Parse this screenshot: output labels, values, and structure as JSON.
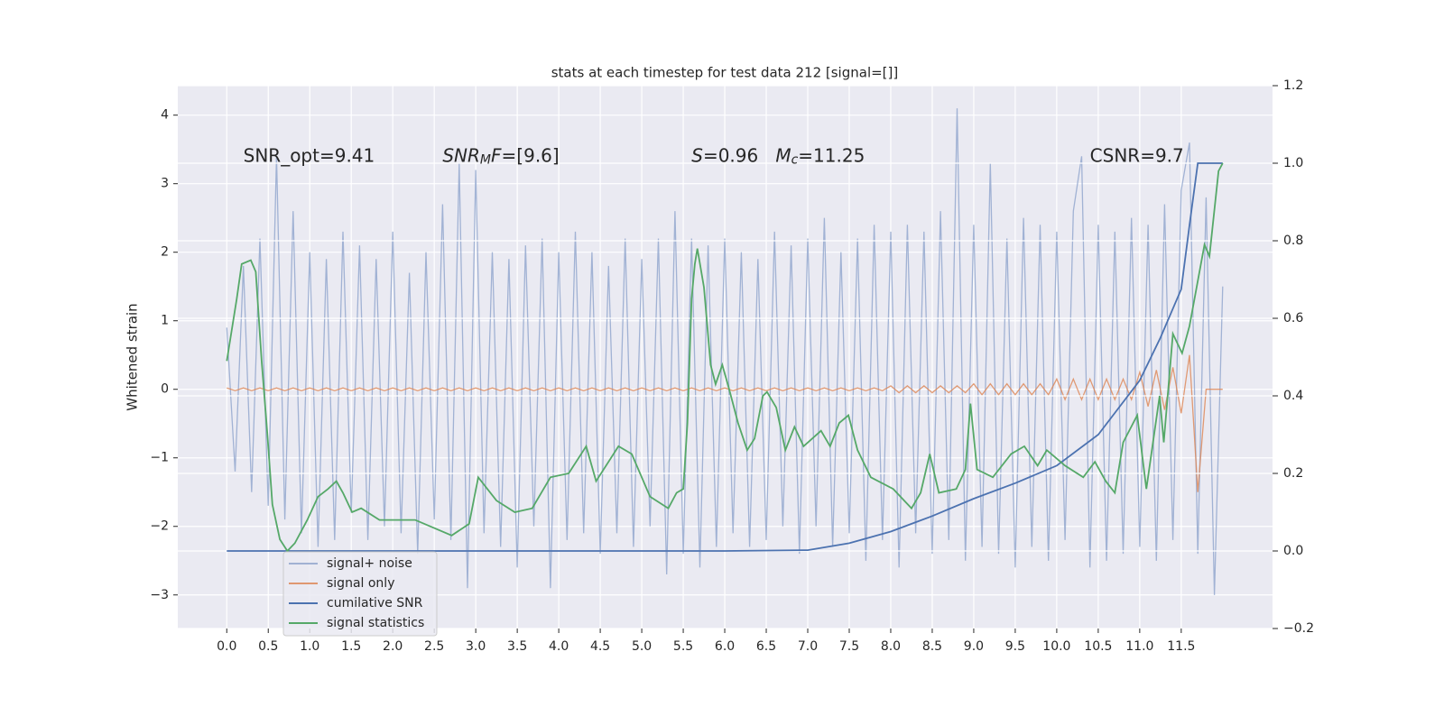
{
  "chart_data": {
    "type": "line",
    "title": "stats at each timestep for test data 212 [signal=[]]",
    "y_label": "Whitened strain",
    "grid": true,
    "legend": "lower left",
    "xlim": [
      -0.59,
      12.6
    ],
    "ylim": [
      -3.49,
      4.43
    ],
    "y2lim": [
      -0.2,
      1.2
    ],
    "xticks": [
      {
        "value": 0,
        "label": "0.0"
      },
      0.5,
      {
        "value": 1,
        "label": "1.0"
      },
      1.5,
      {
        "value": 2,
        "label": "2.0"
      },
      2.5,
      {
        "value": 3,
        "label": "3.0"
      },
      3.5,
      {
        "value": 4,
        "label": "4.0"
      },
      4.5,
      {
        "value": 5,
        "label": "5.0"
      },
      5.5,
      {
        "value": 6,
        "label": "6.0"
      },
      6.5,
      {
        "value": 7,
        "label": "7.0"
      },
      7.5,
      {
        "value": 8,
        "label": "8.0"
      },
      8.5,
      {
        "value": 9,
        "label": "9.0"
      },
      9.5,
      {
        "value": 10,
        "label": "10.0"
      },
      10.5,
      {
        "value": 11,
        "label": "11.0"
      },
      11.5
    ],
    "yticks": [
      {
        "value": -3,
        "label": "−3"
      },
      {
        "value": -2,
        "label": "−2"
      },
      {
        "value": -1,
        "label": "−1"
      },
      0,
      1,
      2,
      3,
      4
    ],
    "y2ticks": [
      {
        "value": -0.2,
        "label": "−0.2"
      },
      {
        "value": 0,
        "label": "0.0"
      },
      0.2,
      0.4,
      0.6,
      0.8,
      {
        "value": 1,
        "label": "1.0"
      },
      1.2
    ],
    "annotations": [
      {
        "x": 0.2,
        "parts": [
          {
            "text": "SNR_opt=9.41",
            "style": "normal"
          }
        ]
      },
      {
        "x": 2.6,
        "parts": [
          {
            "text": "SNR",
            "style": "italic"
          },
          {
            "text": "M",
            "style": "italic-sub"
          },
          {
            "text": "F",
            "style": "italic"
          },
          {
            "text": "=[9.6]",
            "style": "normal"
          }
        ]
      },
      {
        "x": 5.6,
        "parts": [
          {
            "text": "S",
            "style": "italic"
          },
          {
            "text": "=0.96   ",
            "style": "normal"
          },
          {
            "text": "M",
            "style": "italic"
          },
          {
            "text": "c",
            "style": "italic-sub"
          },
          {
            "text": "=11.25",
            "style": "normal"
          }
        ]
      },
      {
        "x": 10.4,
        "parts": [
          {
            "text": "CSNR=9.7",
            "style": "normal"
          }
        ]
      }
    ],
    "annotation_y": 3.4,
    "x": [
      0,
      0.1,
      0.2,
      0.3,
      0.4,
      0.5,
      0.6,
      0.7,
      0.8,
      0.9,
      1,
      1.1,
      1.2,
      1.3,
      1.4,
      1.5,
      1.6,
      1.7,
      1.8,
      1.9,
      2,
      2.1,
      2.2,
      2.3,
      2.4,
      2.5,
      2.6,
      2.7,
      2.8,
      2.9,
      3,
      3.1,
      3.2,
      3.3,
      3.4,
      3.5,
      3.6,
      3.7,
      3.8,
      3.9,
      4,
      4.1,
      4.2,
      4.3,
      4.4,
      4.5,
      4.6,
      4.7,
      4.8,
      4.9,
      5,
      5.1,
      5.2,
      5.3,
      5.4,
      5.5,
      5.6,
      5.7,
      5.8,
      5.9,
      6,
      6.1,
      6.2,
      6.3,
      6.4,
      6.5,
      6.6,
      6.7,
      6.8,
      6.9,
      7,
      7.1,
      7.2,
      7.3,
      7.4,
      7.5,
      7.6,
      7.7,
      7.8,
      7.9,
      8,
      8.1,
      8.2,
      8.3,
      8.4,
      8.5,
      8.6,
      8.7,
      8.8,
      8.9,
      9,
      9.1,
      9.2,
      9.3,
      9.4,
      9.5,
      9.6,
      9.7,
      9.8,
      9.9,
      10,
      10.1,
      10.2,
      10.3,
      10.4,
      10.5,
      10.6,
      10.7,
      10.8,
      10.9,
      11,
      11.1,
      11.2,
      11.3,
      11.4,
      11.5,
      11.6,
      11.7,
      11.8,
      11.9,
      12
    ],
    "series": [
      {
        "name": "signal+ noise",
        "color": "#8fa4cc",
        "axis": "y",
        "values": [
          0.9,
          -1.2,
          1.8,
          -1.5,
          2.2,
          -1.7,
          3.4,
          -1.9,
          2.6,
          -2.1,
          2.0,
          -2.3,
          1.9,
          -2.2,
          2.3,
          -1.8,
          2.1,
          -2.2,
          1.9,
          -2.0,
          2.3,
          -2.1,
          1.7,
          -2.4,
          2.0,
          -1.9,
          2.7,
          -2.2,
          3.3,
          -2.9,
          3.2,
          -2.1,
          2.0,
          -2.3,
          1.9,
          -2.6,
          2.1,
          -2.0,
          2.2,
          -2.9,
          2.0,
          -2.2,
          2.3,
          -2.1,
          2.0,
          -2.4,
          1.8,
          -2.1,
          2.2,
          -2.3,
          1.9,
          -2.0,
          2.2,
          -2.7,
          2.6,
          -2.4,
          2.2,
          -2.6,
          2.1,
          -2.3,
          2.2,
          -2.1,
          2.0,
          -2.3,
          1.9,
          -2.2,
          2.3,
          -2.0,
          2.1,
          -2.4,
          2.2,
          -2.0,
          2.5,
          -2.3,
          2.0,
          -2.1,
          2.2,
          -2.5,
          2.4,
          -2.2,
          2.3,
          -2.6,
          2.4,
          -2.1,
          2.3,
          -2.4,
          2.6,
          -2.2,
          4.1,
          -2.5,
          2.4,
          -2.3,
          3.3,
          -2.4,
          2.2,
          -2.6,
          2.5,
          -2.3,
          2.4,
          -2.5,
          2.3,
          -2.2,
          2.6,
          3.4,
          -2.6,
          2.4,
          -2.5,
          2.3,
          -2.4,
          2.5,
          -2.3,
          2.4,
          -2.5,
          2.7,
          -2.2,
          2.9,
          3.6,
          -2.4,
          2.8,
          -3.0,
          1.5
        ]
      },
      {
        "name": "signal only",
        "color": "#dd8452",
        "axis": "y",
        "values": [
          0.02,
          -0.02,
          0.02,
          -0.02,
          0.02,
          -0.02,
          0.02,
          -0.02,
          0.02,
          -0.02,
          0.02,
          -0.02,
          0.02,
          -0.02,
          0.02,
          -0.02,
          0.02,
          -0.02,
          0.02,
          -0.02,
          0.02,
          -0.02,
          0.02,
          -0.02,
          0.02,
          -0.02,
          0.02,
          -0.02,
          0.02,
          -0.02,
          0.02,
          -0.02,
          0.02,
          -0.02,
          0.02,
          -0.02,
          0.02,
          -0.02,
          0.02,
          -0.02,
          0.02,
          -0.02,
          0.02,
          -0.02,
          0.02,
          -0.02,
          0.02,
          -0.02,
          0.02,
          -0.02,
          0.02,
          -0.02,
          0.02,
          -0.02,
          0.02,
          -0.02,
          0.02,
          -0.02,
          0.02,
          -0.02,
          0.02,
          -0.02,
          0.02,
          -0.02,
          0.02,
          -0.02,
          0.02,
          -0.02,
          0.02,
          -0.02,
          0.02,
          -0.02,
          0.02,
          -0.02,
          0.02,
          -0.02,
          0.02,
          -0.02,
          0.02,
          -0.02,
          0.05,
          -0.05,
          0.05,
          -0.05,
          0.05,
          -0.05,
          0.05,
          -0.05,
          0.05,
          -0.05,
          0.08,
          -0.08,
          0.08,
          -0.08,
          0.08,
          -0.08,
          0.08,
          -0.08,
          0.08,
          -0.08,
          0.15,
          -0.15,
          0.15,
          -0.15,
          0.15,
          -0.15,
          0.15,
          -0.15,
          0.15,
          -0.15,
          0.25,
          -0.25,
          0.28,
          -0.3,
          0.32,
          -0.35,
          0.5,
          -1.5,
          0,
          0,
          0
        ]
      },
      {
        "name": "cumilative SNR",
        "color": "#4c72b0",
        "axis": "y2",
        "x": [
          0,
          1,
          2,
          3,
          4,
          5,
          6,
          7,
          7.5,
          8,
          8.5,
          9,
          9.5,
          10,
          10.5,
          11,
          11.25,
          11.5,
          11.6,
          11.7,
          12
        ],
        "values": [
          0,
          0,
          0,
          0,
          0,
          0,
          0,
          0.002,
          0.02,
          0.05,
          0.09,
          0.135,
          0.175,
          0.22,
          0.3,
          0.44,
          0.55,
          0.675,
          0.84,
          1.0,
          1.0
        ]
      },
      {
        "name": "signal statistics",
        "color": "#55a868",
        "axis": "y2",
        "x": [
          0,
          0.12,
          0.18,
          0.29,
          0.35,
          0.42,
          0.49,
          0.55,
          0.64,
          0.73,
          0.82,
          0.97,
          1.1,
          1.22,
          1.32,
          1.4,
          1.51,
          1.62,
          1.84,
          2.05,
          2.27,
          2.49,
          2.71,
          2.92,
          3.03,
          3.25,
          3.47,
          3.68,
          3.9,
          4.12,
          4.33,
          4.45,
          4.72,
          4.88,
          5.1,
          5.32,
          5.42,
          5.5,
          5.55,
          5.6,
          5.64,
          5.67,
          5.75,
          5.83,
          5.89,
          5.97,
          6.05,
          6.16,
          6.27,
          6.36,
          6.46,
          6.51,
          6.62,
          6.73,
          6.84,
          6.95,
          7.16,
          7.27,
          7.38,
          7.49,
          7.6,
          7.76,
          8.03,
          8.25,
          8.36,
          8.47,
          8.58,
          8.79,
          8.9,
          8.96,
          9.04,
          9.23,
          9.45,
          9.61,
          9.77,
          9.88,
          10.1,
          10.32,
          10.46,
          10.59,
          10.7,
          10.8,
          10.97,
          11.08,
          11.24,
          11.29,
          11.4,
          11.51,
          11.6,
          11.78,
          11.84,
          11.95,
          12
        ],
        "values": [
          0.49,
          0.65,
          0.74,
          0.75,
          0.72,
          0.49,
          0.3,
          0.12,
          0.03,
          0,
          0.02,
          0.08,
          0.14,
          0.16,
          0.18,
          0.15,
          0.1,
          0.11,
          0.08,
          0.08,
          0.08,
          0.06,
          0.04,
          0.07,
          0.19,
          0.13,
          0.1,
          0.11,
          0.19,
          0.2,
          0.27,
          0.18,
          0.27,
          0.25,
          0.14,
          0.11,
          0.15,
          0.16,
          0.33,
          0.65,
          0.74,
          0.78,
          0.68,
          0.48,
          0.43,
          0.48,
          0.42,
          0.33,
          0.26,
          0.29,
          0.4,
          0.41,
          0.37,
          0.26,
          0.32,
          0.27,
          0.31,
          0.27,
          0.33,
          0.35,
          0.26,
          0.19,
          0.16,
          0.11,
          0.15,
          0.25,
          0.15,
          0.16,
          0.21,
          0.38,
          0.21,
          0.19,
          0.25,
          0.27,
          0.22,
          0.26,
          0.22,
          0.19,
          0.23,
          0.18,
          0.15,
          0.28,
          0.35,
          0.16,
          0.4,
          0.28,
          0.56,
          0.51,
          0.58,
          0.79,
          0.76,
          0.98,
          1.0
        ]
      }
    ]
  }
}
